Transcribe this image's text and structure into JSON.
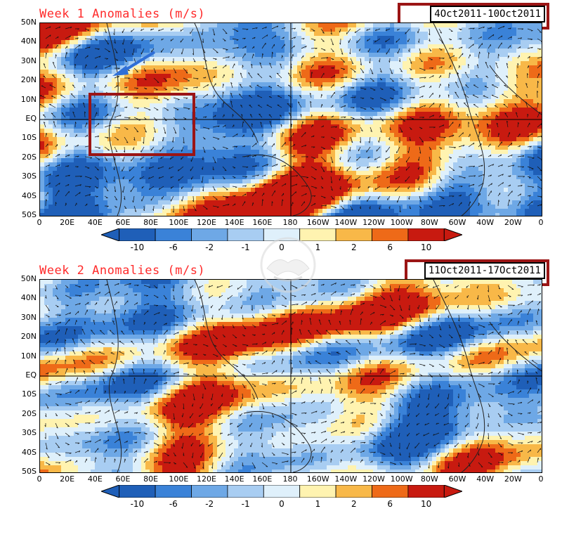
{
  "panels": [
    {
      "title": "Week 1 Anomalies (m/s)",
      "dates": "4Oct2011-10Oct2011"
    },
    {
      "title": "Week 2 Anomalies (m/s)",
      "dates": "11Oct2011-17Oct2011"
    }
  ],
  "axes": {
    "lat_labels": [
      "50N",
      "40N",
      "30N",
      "20N",
      "10N",
      "EQ",
      "10S",
      "20S",
      "30S",
      "40S",
      "50S"
    ],
    "lon_labels": [
      "0",
      "20E",
      "40E",
      "60E",
      "80E",
      "100E",
      "120E",
      "140E",
      "160E",
      "180",
      "160W",
      "140W",
      "120W",
      "100W",
      "80W",
      "60W",
      "40W",
      "20W",
      "0"
    ]
  },
  "colorbar": {
    "labels": [
      "-10",
      "-6",
      "-2",
      "-1",
      "0",
      "1",
      "2",
      "6",
      "10"
    ],
    "colors": [
      "#1f5fb8",
      "#3a82d8",
      "#6ea8e6",
      "#a8cdf2",
      "#dff0fb",
      "#fff3b0",
      "#f8b848",
      "#ee6a18",
      "#c81a10"
    ]
  },
  "logo": {
    "name": "handshake-logo",
    "text": ""
  }
}
